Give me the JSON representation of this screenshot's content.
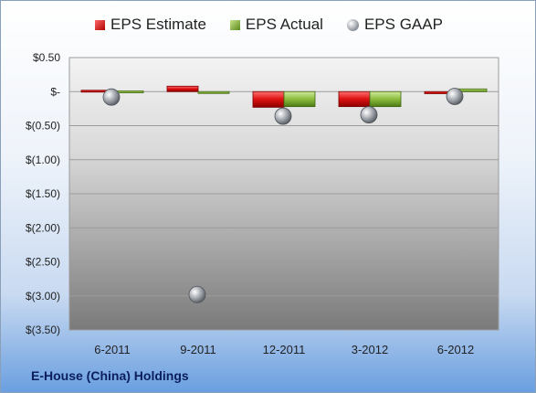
{
  "chart_data": {
    "type": "bar",
    "categories": [
      "6-2011",
      "9-2011",
      "12-2011",
      "3-2012",
      "6-2012"
    ],
    "series": [
      {
        "name": "EPS Estimate",
        "type": "bar",
        "color": "#c00000",
        "values": [
          0.02,
          0.08,
          -0.23,
          -0.22,
          -0.03
        ]
      },
      {
        "name": "EPS Actual",
        "type": "bar",
        "color": "#76a32e",
        "values": [
          0.01,
          -0.01,
          -0.22,
          -0.22,
          0.04
        ]
      },
      {
        "name": "EPS GAAP",
        "type": "marker",
        "color": "#8c9199",
        "values": [
          -0.08,
          -2.98,
          -0.36,
          -0.34,
          -0.07
        ]
      }
    ],
    "ylim": [
      -3.5,
      0.5
    ],
    "yticks": [
      0.5,
      0,
      -0.5,
      -1.0,
      -1.5,
      -2.0,
      -2.5,
      -3.0,
      -3.5
    ],
    "ytick_labels": [
      "$0.50",
      "$-",
      "$(0.50)",
      "$(1.00)",
      "$(1.50)",
      "$(2.00)",
      "$(2.50)",
      "$(3.00)",
      "$(3.50)"
    ],
    "grid": true,
    "legend_position": "top"
  },
  "legend": {
    "estimate": "EPS Estimate",
    "actual": "EPS Actual",
    "gaap": "EPS GAAP"
  },
  "company_name": "E-House (China) Holdings"
}
